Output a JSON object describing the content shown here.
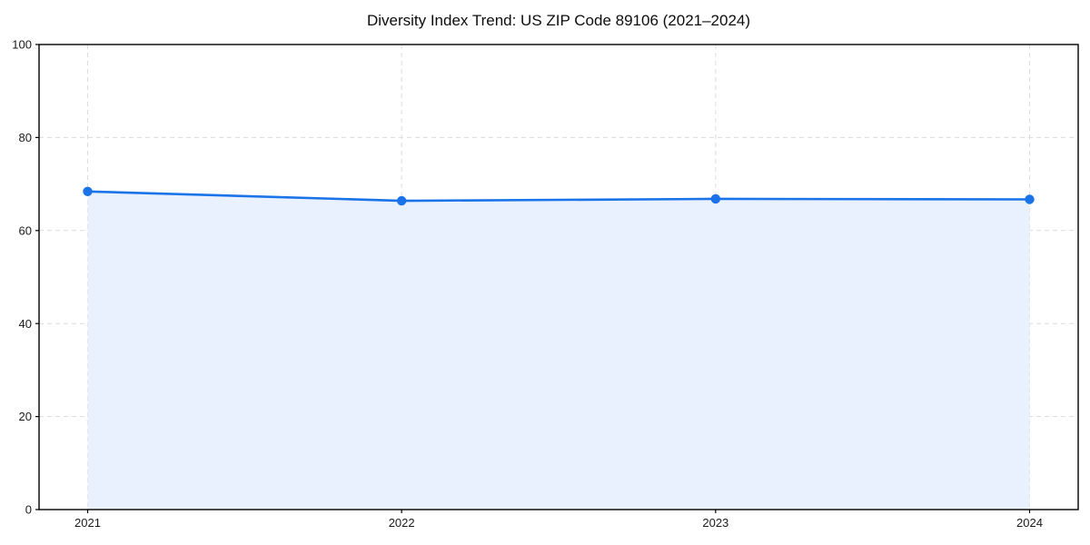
{
  "chart_data": {
    "type": "area",
    "title": "Diversity Index Trend: US ZIP Code 89106 (2021–2024)",
    "categories": [
      "2021",
      "2022",
      "2023",
      "2024"
    ],
    "series": [
      {
        "name": "Diversity Index",
        "values": [
          68.4,
          66.4,
          66.8,
          66.7
        ]
      }
    ],
    "xlabel": "",
    "ylabel": "",
    "ylim": [
      0,
      100
    ],
    "yticks": [
      0,
      20,
      40,
      60,
      80,
      100
    ],
    "grid": {
      "style": "dashed",
      "horizontal": true,
      "vertical": true
    },
    "legend_position": "none",
    "colors": {
      "line": "#1a73e8",
      "marker": "#1a73e8",
      "fill": "#e8f1fd",
      "grid": "#dcdcdc",
      "axis": "#000000",
      "tick_label": "#1a1a1a",
      "background": "#ffffff"
    }
  }
}
